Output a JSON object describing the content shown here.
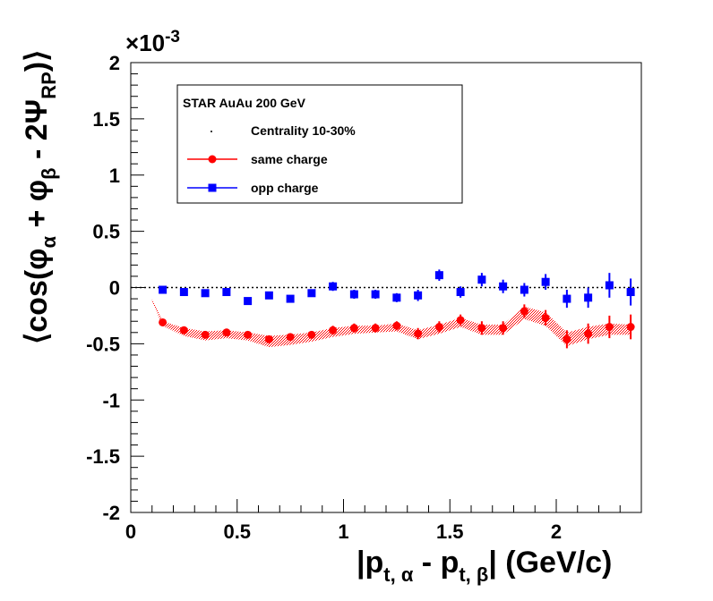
{
  "chart_data": {
    "type": "scatter",
    "xlim": [
      0,
      2.4
    ],
    "ylim": [
      -2,
      2
    ],
    "x_ticks": [
      {
        "value": 0,
        "label": "0"
      },
      {
        "value": 0.5,
        "label": "0.5"
      },
      {
        "value": 1,
        "label": "1"
      },
      {
        "value": 1.5,
        "label": "1.5"
      },
      {
        "value": 2,
        "label": "2"
      }
    ],
    "y_ticks": [
      {
        "value": 2,
        "label": "2"
      },
      {
        "value": 1.5,
        "label": "1.5"
      },
      {
        "value": 1,
        "label": "1"
      },
      {
        "value": 0.5,
        "label": "0.5"
      },
      {
        "value": 0,
        "label": "0"
      },
      {
        "value": -0.5,
        "label": "-0.5"
      },
      {
        "value": -1,
        "label": "-1"
      },
      {
        "value": -1.5,
        "label": "-1.5"
      },
      {
        "value": -2,
        "label": "-2"
      }
    ],
    "y_multiplier": {
      "base": "×10",
      "exponent": "-3"
    },
    "xlabel": {
      "main": "|p",
      "sub1": "t, α",
      "mid": " - p",
      "sub2": "t, β",
      "end": "|  (GeV/c)"
    },
    "ylabel": {
      "open": "⟨cos(φ",
      "sub1": "α",
      "plus": " + φ",
      "sub2": "β",
      "mid": " - 2Ψ",
      "sub3": "RP",
      "close": ")⟩"
    },
    "zero_line": true,
    "legend_position": "top-left",
    "legend": {
      "title": "STAR  AuAu 200 GeV",
      "entries": [
        {
          "label": "Centrality 10-30%",
          "marker": "dot",
          "color": "#000000"
        },
        {
          "label": "same charge",
          "marker": "circle",
          "color": "#ff0000"
        },
        {
          "label": "opp charge",
          "marker": "square",
          "color": "#0000ff"
        }
      ]
    },
    "series": [
      {
        "name": "same charge",
        "marker": "circle",
        "color": "#ff0000",
        "x": [
          0.15,
          0.25,
          0.35,
          0.45,
          0.55,
          0.65,
          0.75,
          0.85,
          0.95,
          1.05,
          1.15,
          1.25,
          1.35,
          1.45,
          1.55,
          1.65,
          1.75,
          1.85,
          1.95,
          2.05,
          2.15,
          2.25,
          2.35
        ],
        "y": [
          -0.31,
          -0.38,
          -0.42,
          -0.4,
          -0.42,
          -0.46,
          -0.44,
          -0.42,
          -0.38,
          -0.36,
          -0.36,
          -0.34,
          -0.41,
          -0.35,
          -0.29,
          -0.36,
          -0.36,
          -0.21,
          -0.27,
          -0.46,
          -0.41,
          -0.35,
          -0.35
        ],
        "err": [
          0.02,
          0.02,
          0.03,
          0.03,
          0.03,
          0.03,
          0.03,
          0.03,
          0.04,
          0.04,
          0.04,
          0.04,
          0.05,
          0.05,
          0.05,
          0.06,
          0.06,
          0.06,
          0.07,
          0.08,
          0.09,
          0.1,
          0.11
        ]
      },
      {
        "name": "opp charge",
        "marker": "square",
        "color": "#0000ff",
        "x": [
          0.15,
          0.25,
          0.35,
          0.45,
          0.55,
          0.65,
          0.75,
          0.85,
          0.95,
          1.05,
          1.15,
          1.25,
          1.35,
          1.45,
          1.55,
          1.65,
          1.75,
          1.85,
          1.95,
          2.05,
          2.15,
          2.25,
          2.35
        ],
        "y": [
          -0.02,
          -0.04,
          -0.05,
          -0.04,
          -0.12,
          -0.07,
          -0.1,
          -0.05,
          0.01,
          -0.06,
          -0.06,
          -0.09,
          -0.07,
          0.11,
          -0.04,
          0.07,
          0.01,
          -0.02,
          0.05,
          -0.1,
          -0.09,
          0.02,
          -0.04
        ],
        "err": [
          0.02,
          0.02,
          0.02,
          0.02,
          0.03,
          0.03,
          0.03,
          0.03,
          0.04,
          0.04,
          0.04,
          0.04,
          0.05,
          0.05,
          0.05,
          0.06,
          0.06,
          0.06,
          0.07,
          0.08,
          0.09,
          0.11,
          0.12
        ]
      }
    ],
    "systematic_band": {
      "series": "same charge",
      "color": "#ff0000",
      "x": [
        0.1,
        0.15,
        0.25,
        0.35,
        0.45,
        0.55,
        0.65,
        0.75,
        0.85,
        0.95,
        1.05,
        1.15,
        1.25,
        1.35,
        1.45,
        1.55,
        1.65,
        1.75,
        1.85,
        1.95,
        2.05,
        2.15,
        2.25,
        2.35
      ],
      "upper": [
        -0.1,
        -0.3,
        -0.36,
        -0.39,
        -0.38,
        -0.4,
        -0.43,
        -0.42,
        -0.4,
        -0.36,
        -0.34,
        -0.34,
        -0.32,
        -0.38,
        -0.33,
        -0.27,
        -0.33,
        -0.33,
        -0.17,
        -0.22,
        -0.4,
        -0.35,
        -0.32,
        -0.33
      ],
      "lower": [
        -0.12,
        -0.34,
        -0.43,
        -0.47,
        -0.45,
        -0.47,
        -0.53,
        -0.51,
        -0.48,
        -0.44,
        -0.41,
        -0.4,
        -0.39,
        -0.46,
        -0.41,
        -0.35,
        -0.42,
        -0.42,
        -0.28,
        -0.34,
        -0.52,
        -0.46,
        -0.42,
        -0.42
      ]
    }
  }
}
